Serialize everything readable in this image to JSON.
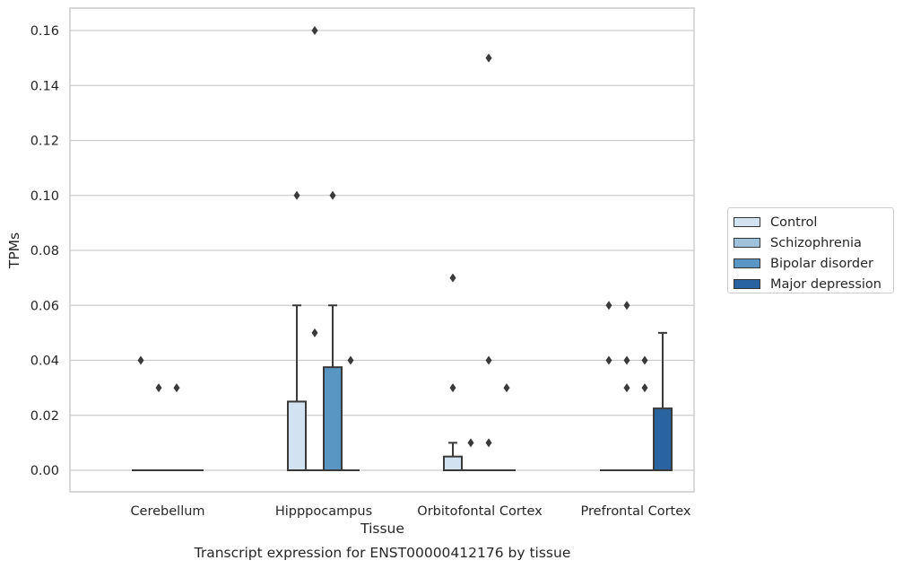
{
  "caption": "Transcript expression for ENST00000412176 by tissue",
  "chart_data": {
    "type": "box",
    "xlabel": "Tissue",
    "ylabel": "TPMs",
    "ylim": [
      -0.008,
      0.168
    ],
    "yticks": [
      0.0,
      0.02,
      0.04,
      0.06,
      0.08,
      0.1,
      0.12,
      0.14,
      0.16
    ],
    "ytick_labels": [
      "0.00",
      "0.02",
      "0.04",
      "0.06",
      "0.08",
      "0.10",
      "0.12",
      "0.14",
      "0.16"
    ],
    "grid": true,
    "legend_position": "right",
    "categories": [
      "Cerebellum",
      "Hipppocampus",
      "Orbitofontal Cortex",
      "Prefrontal Cortex"
    ],
    "series": [
      {
        "name": "Control",
        "color": "#d3e2f0",
        "boxes": [
          {
            "q1": 0,
            "median": 0,
            "q3": 0,
            "whisker_low": 0,
            "whisker_high": 0,
            "outliers": [
              0.04
            ]
          },
          {
            "q1": 0,
            "median": 0,
            "q3": 0.025,
            "whisker_low": 0,
            "whisker_high": 0.06,
            "outliers": [
              0.1
            ]
          },
          {
            "q1": 0,
            "median": 0,
            "q3": 0.005,
            "whisker_low": 0,
            "whisker_high": 0.01,
            "outliers": [
              0.07,
              0.03
            ]
          },
          {
            "q1": 0,
            "median": 0,
            "q3": 0,
            "whisker_low": 0,
            "whisker_high": 0,
            "outliers": [
              0.06,
              0.04
            ]
          }
        ]
      },
      {
        "name": "Schizophrenia",
        "color": "#9ec2dc",
        "boxes": [
          {
            "q1": 0,
            "median": 0,
            "q3": 0,
            "whisker_low": 0,
            "whisker_high": 0,
            "outliers": [
              0.03
            ]
          },
          {
            "q1": 0,
            "median": 0,
            "q3": 0,
            "whisker_low": 0,
            "whisker_high": 0,
            "outliers": [
              0.16,
              0.05
            ]
          },
          {
            "q1": 0,
            "median": 0,
            "q3": 0,
            "whisker_low": 0,
            "whisker_high": 0,
            "outliers": [
              0.01
            ]
          },
          {
            "q1": 0,
            "median": 0,
            "q3": 0,
            "whisker_low": 0,
            "whisker_high": 0,
            "outliers": [
              0.06,
              0.04,
              0.03
            ]
          }
        ]
      },
      {
        "name": "Bipolar disorder",
        "color": "#5a96c3",
        "boxes": [
          {
            "q1": 0,
            "median": 0,
            "q3": 0,
            "whisker_low": 0,
            "whisker_high": 0,
            "outliers": [
              0.03
            ]
          },
          {
            "q1": 0,
            "median": 0,
            "q3": 0.0375,
            "whisker_low": 0,
            "whisker_high": 0.06,
            "outliers": [
              0.1
            ]
          },
          {
            "q1": 0,
            "median": 0,
            "q3": 0,
            "whisker_low": 0,
            "whisker_high": 0,
            "outliers": [
              0.15,
              0.04,
              0.01
            ]
          },
          {
            "q1": 0,
            "median": 0,
            "q3": 0,
            "whisker_low": 0,
            "whisker_high": 0,
            "outliers": [
              0.04,
              0.03
            ]
          }
        ]
      },
      {
        "name": "Major depression",
        "color": "#2a64a0",
        "boxes": [
          {
            "q1": 0,
            "median": 0,
            "q3": 0,
            "whisker_low": 0,
            "whisker_high": 0,
            "outliers": []
          },
          {
            "q1": 0,
            "median": 0,
            "q3": 0,
            "whisker_low": 0,
            "whisker_high": 0,
            "outliers": [
              0.04
            ]
          },
          {
            "q1": 0,
            "median": 0,
            "q3": 0,
            "whisker_low": 0,
            "whisker_high": 0,
            "outliers": [
              0.03
            ]
          },
          {
            "q1": 0,
            "median": 0,
            "q3": 0.0225,
            "whisker_low": 0,
            "whisker_high": 0.05,
            "outliers": []
          }
        ]
      }
    ]
  }
}
